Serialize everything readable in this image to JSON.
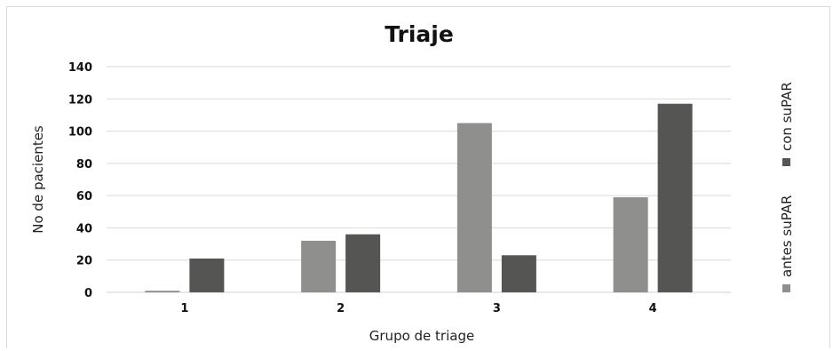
{
  "colors": {
    "series_1": "#8f8f8e",
    "series_2": "#555553",
    "grid": "#d9d9d9",
    "axis": "#d0d0d0"
  },
  "chart_data": {
    "type": "bar",
    "title": "Triaje",
    "xlabel": "Grupo de triage",
    "ylabel": "No de pacientes",
    "categories": [
      "1",
      "2",
      "3",
      "4"
    ],
    "series": [
      {
        "name": "antes suPAR",
        "values": [
          1,
          32,
          105,
          59
        ]
      },
      {
        "name": "con suPAR",
        "values": [
          21,
          36,
          23,
          117
        ]
      }
    ],
    "ylim": [
      0,
      140
    ],
    "yticks": [
      "0",
      "20",
      "40",
      "60",
      "80",
      "100",
      "120",
      "140"
    ],
    "grid": true,
    "legend_position": "right, rotated vertical"
  }
}
